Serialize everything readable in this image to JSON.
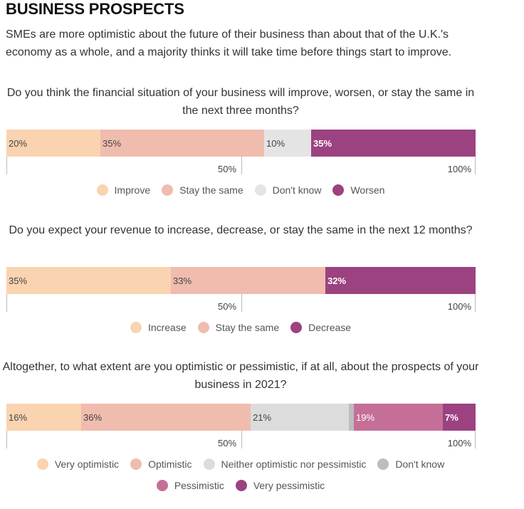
{
  "header": {
    "title": "BUSINESS PROSPECTS",
    "subtitle": "SMEs are more optimistic about the future of their business than about that of the U.K.'s economy as a whole, and a majority thinks it will take time before things start to improve."
  },
  "axis": {
    "mid_label": "50%",
    "end_label": "100%"
  },
  "chart_data": [
    {
      "type": "bar",
      "orientation": "horizontal-stacked",
      "title": "Do you think the financial situation of your business will improve, worsen, or stay the same in the next three months?",
      "xlim": [
        0,
        100
      ],
      "series": [
        {
          "name": "Improve",
          "value": 20,
          "label": "20%",
          "color": "#fad3b0"
        },
        {
          "name": "Stay the same",
          "value": 35,
          "label": "35%",
          "color": "#f0bcad"
        },
        {
          "name": "Don't know",
          "value": 10,
          "label": "10%",
          "color": "#e4e4e4"
        },
        {
          "name": "Worsen",
          "value": 35,
          "label": "35%",
          "color": "#9c4280"
        }
      ],
      "legend_rows": [
        [
          0,
          1,
          2,
          3
        ]
      ]
    },
    {
      "type": "bar",
      "orientation": "horizontal-stacked",
      "title": "Do you expect your revenue to increase, decrease, or stay the same in the next 12 months?",
      "xlim": [
        0,
        100
      ],
      "series": [
        {
          "name": "Increase",
          "value": 35,
          "label": "35%",
          "color": "#fad3b0"
        },
        {
          "name": "Stay the same",
          "value": 33,
          "label": "33%",
          "color": "#f0bcad"
        },
        {
          "name": "Decrease",
          "value": 32,
          "label": "32%",
          "color": "#9c4280"
        }
      ],
      "legend_rows": [
        [
          0,
          1,
          2
        ]
      ]
    },
    {
      "type": "bar",
      "orientation": "horizontal-stacked",
      "title": "Altogether, to what extent are you optimistic or pessimistic, if at all, about the prospects of your business in 2021?",
      "xlim": [
        0,
        100
      ],
      "series": [
        {
          "name": "Very optimistic",
          "value": 16,
          "label": "16%",
          "color": "#fad3b0"
        },
        {
          "name": "Optimistic",
          "value": 36,
          "label": "36%",
          "color": "#f0bcad"
        },
        {
          "name": "Neither optimistic nor pessimistic",
          "value": 21,
          "label": "21%",
          "color": "#dcdcdc"
        },
        {
          "name": "Don't know",
          "value": 1,
          "label": "",
          "color": "#bdbdbd"
        },
        {
          "name": "Pessimistic",
          "value": 19,
          "label": "19%",
          "color": "#c56f98"
        },
        {
          "name": "Very pessimistic",
          "value": 7,
          "label": "7%",
          "color": "#9c4280"
        }
      ],
      "legend_rows": [
        [
          0,
          1,
          2,
          3
        ],
        [
          4,
          5
        ]
      ]
    }
  ]
}
